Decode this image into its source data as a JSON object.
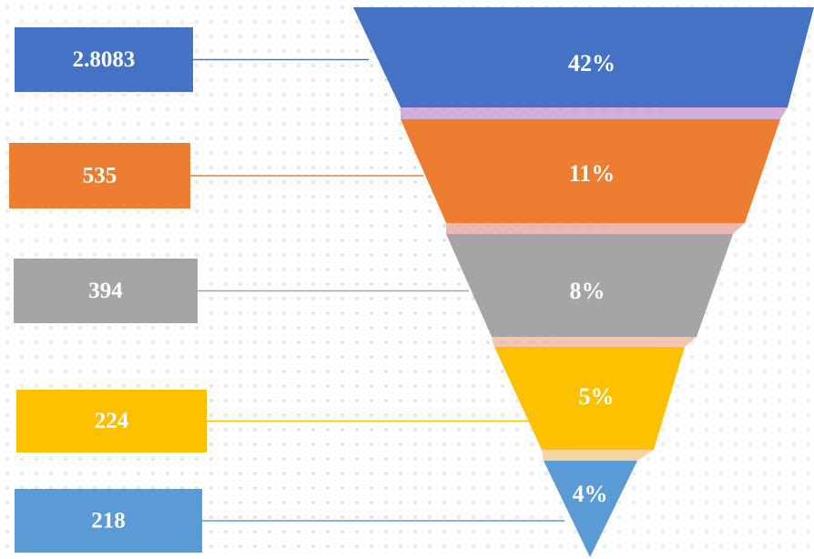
{
  "stages": [
    {
      "label": "2.8083",
      "percent": "42%",
      "color": "#4472c4"
    },
    {
      "label": "535",
      "percent": "11%",
      "color": "#ed7d31"
    },
    {
      "label": "394",
      "percent": "8%",
      "color": "#a5a5a5"
    },
    {
      "label": "224",
      "percent": "5%",
      "color": "#ffc000"
    },
    {
      "label": "218",
      "percent": "4%",
      "color": "#5b9bd5"
    }
  ]
}
